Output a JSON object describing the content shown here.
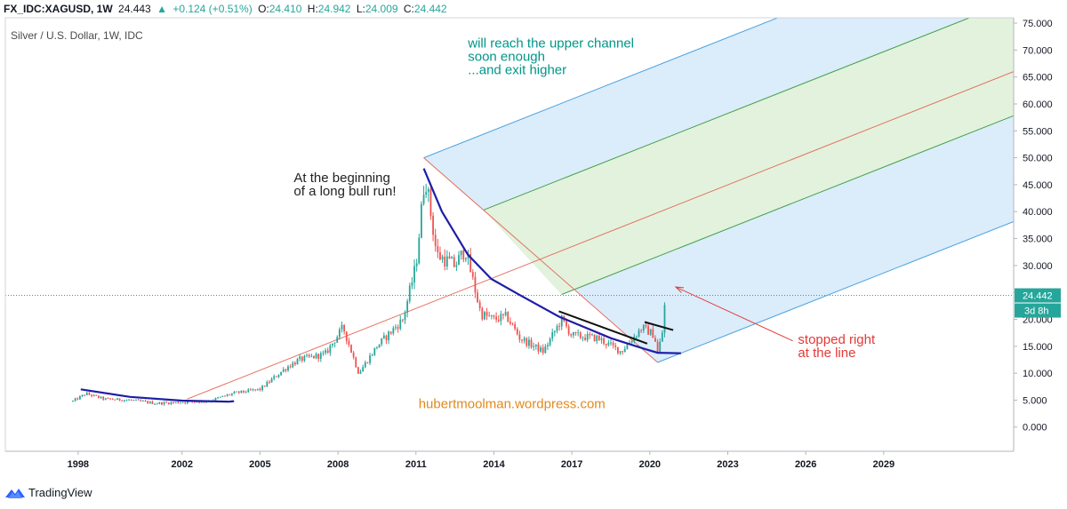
{
  "header": {
    "symbol": "FX_IDC:XAGUSD, 1W",
    "last": "24.443",
    "arrow": "▲",
    "change": "+0.124 (+0.51%)",
    "open_label": "O:",
    "open": "24.410",
    "high_label": "H:",
    "high": "24.942",
    "low_label": "L:",
    "low": "24.009",
    "close_label": "C:",
    "close": "24.442"
  },
  "chart_title": "Silver / U.S. Dollar, 1W, IDC",
  "footer": {
    "brand": "TradingView"
  },
  "colors": {
    "up": "#26a69a",
    "down": "#ef5350",
    "trend": "#1e1ea8",
    "fork_median": "#e46f5f",
    "fork_inner": "#43a047",
    "fork_outer": "#4aa3df",
    "fill_outer": "#dbecfb",
    "fill_inner": "#e2f2dd",
    "annot_teal": "#009688",
    "annot_red": "#e53935",
    "annot_orange": "#e08a1e"
  },
  "chart_data": {
    "type": "candlestick",
    "title": "Silver / U.S. Dollar, 1W, IDC",
    "ylim": [
      -4.5,
      76
    ],
    "xlim": [
      1995.2,
      2034.0
    ],
    "y_ticks": [
      "75.000",
      "70.000",
      "65.000",
      "60.000",
      "55.000",
      "50.000",
      "45.000",
      "40.000",
      "35.000",
      "30.000",
      "25.000",
      "20.000",
      "15.000",
      "10.000",
      "5.000",
      "0.000"
    ],
    "x_ticks": [
      "1998",
      "2002",
      "2005",
      "2008",
      "2011",
      "2014",
      "2017",
      "2020",
      "2023",
      "2026",
      "2029"
    ],
    "price_tag": "24.442",
    "time_tag": "3d 8h",
    "price_line": 24.442,
    "price_anchors": [
      {
        "x": 1997.8,
        "y": 4.8
      },
      {
        "x": 1998.3,
        "y": 6.2
      },
      {
        "x": 1999.0,
        "y": 5.2
      },
      {
        "x": 2000.0,
        "y": 5.0
      },
      {
        "x": 2001.0,
        "y": 4.4
      },
      {
        "x": 2002.0,
        "y": 4.6
      },
      {
        "x": 2003.0,
        "y": 4.8
      },
      {
        "x": 2004.0,
        "y": 6.3
      },
      {
        "x": 2005.0,
        "y": 7.0
      },
      {
        "x": 2006.0,
        "y": 11.0
      },
      {
        "x": 2006.5,
        "y": 12.5
      },
      {
        "x": 2007.5,
        "y": 13.5
      },
      {
        "x": 2008.2,
        "y": 18.5
      },
      {
        "x": 2008.8,
        "y": 10.0
      },
      {
        "x": 2009.5,
        "y": 15.0
      },
      {
        "x": 2010.5,
        "y": 20.0
      },
      {
        "x": 2011.0,
        "y": 30.0
      },
      {
        "x": 2011.35,
        "y": 47.0
      },
      {
        "x": 2011.8,
        "y": 32.0
      },
      {
        "x": 2012.5,
        "y": 30.0
      },
      {
        "x": 2012.9,
        "y": 33.0
      },
      {
        "x": 2013.5,
        "y": 21.0
      },
      {
        "x": 2014.0,
        "y": 20.0
      },
      {
        "x": 2014.5,
        "y": 20.5
      },
      {
        "x": 2015.0,
        "y": 16.5
      },
      {
        "x": 2015.9,
        "y": 14.0
      },
      {
        "x": 2016.6,
        "y": 20.0
      },
      {
        "x": 2017.0,
        "y": 17.0
      },
      {
        "x": 2018.0,
        "y": 16.5
      },
      {
        "x": 2018.9,
        "y": 14.0
      },
      {
        "x": 2019.7,
        "y": 18.5
      },
      {
        "x": 2020.2,
        "y": 17.0
      },
      {
        "x": 2020.25,
        "y": 12.5
      },
      {
        "x": 2020.5,
        "y": 18.0
      },
      {
        "x": 2020.6,
        "y": 24.4
      }
    ],
    "trend_curve": [
      [
        1998.1,
        7.0
      ],
      [
        2000,
        5.6
      ],
      [
        2002,
        4.9
      ],
      [
        2003.8,
        4.7
      ],
      [
        2004.0,
        4.8
      ]
    ],
    "trend_curve_2": [
      [
        2011.3,
        48.0
      ],
      [
        2012.0,
        40.0
      ],
      [
        2013.0,
        32.0
      ],
      [
        2013.9,
        27.5
      ],
      [
        2015.0,
        24.5
      ],
      [
        2016.5,
        20.5
      ],
      [
        2018.5,
        16.5
      ],
      [
        2019.8,
        14.5
      ],
      [
        2020.3,
        13.8
      ],
      [
        2021.2,
        13.7
      ]
    ],
    "trendline_black_1": [
      [
        2016.5,
        21.5
      ],
      [
        2019.9,
        15.5
      ]
    ],
    "trendline_black_2": [
      [
        2019.8,
        19.5
      ],
      [
        2020.9,
        18.0
      ]
    ],
    "median_line": [
      [
        2002.2,
        5.2
      ],
      [
        2034,
        66.0
      ]
    ],
    "pitchfork_handle": [
      [
        2011.3,
        50.0
      ],
      [
        2020.3,
        12.0
      ]
    ],
    "pitchfork_upper_start": [
      2011.3,
      50.0
    ],
    "pitchfork_lower_start": [
      2020.3,
      12.0
    ],
    "pitchfork_inner_upper_start": [
      2013.6,
      40.3
    ],
    "pitchfork_inner_lower_start": [
      2016.6,
      24.6
    ],
    "fork_slope": 1.909,
    "annotations": [
      {
        "text_lines": [
          "At the beginning",
          "of a long bull run!"
        ],
        "x": 2006.3,
        "y": 45.5,
        "color": "dark"
      },
      {
        "text_lines": [
          "will reach the upper channel",
          "soon enough",
          "...and exit higher"
        ],
        "x": 2013.0,
        "y": 70.5,
        "color": "teal"
      },
      {
        "text_lines": [
          "stopped right",
          "at the line"
        ],
        "x": 2025.7,
        "y": 15.5,
        "color": "red"
      },
      {
        "text_lines": [
          "hubertmoolman.wordpress.com"
        ],
        "x": 2011.1,
        "y": 3.5,
        "color": "orange"
      }
    ],
    "arrow": {
      "from": [
        2025.5,
        16.0
      ],
      "to": [
        2021.0,
        26.0
      ]
    }
  }
}
